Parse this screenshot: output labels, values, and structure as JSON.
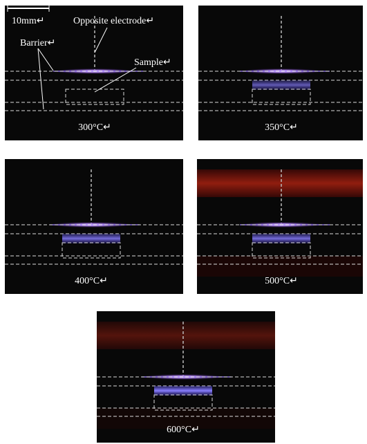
{
  "annotations": {
    "scale": "10mm↵",
    "electrode": "Opposite electrode↵",
    "barrier": "Barrier↵",
    "sample": "Sample↵"
  },
  "panels": [
    {
      "label": "300°C↵"
    },
    {
      "label": "350°C↵"
    },
    {
      "label": "400°C↵"
    },
    {
      "label": "500°C↵"
    },
    {
      "label": "600°C↵"
    }
  ]
}
